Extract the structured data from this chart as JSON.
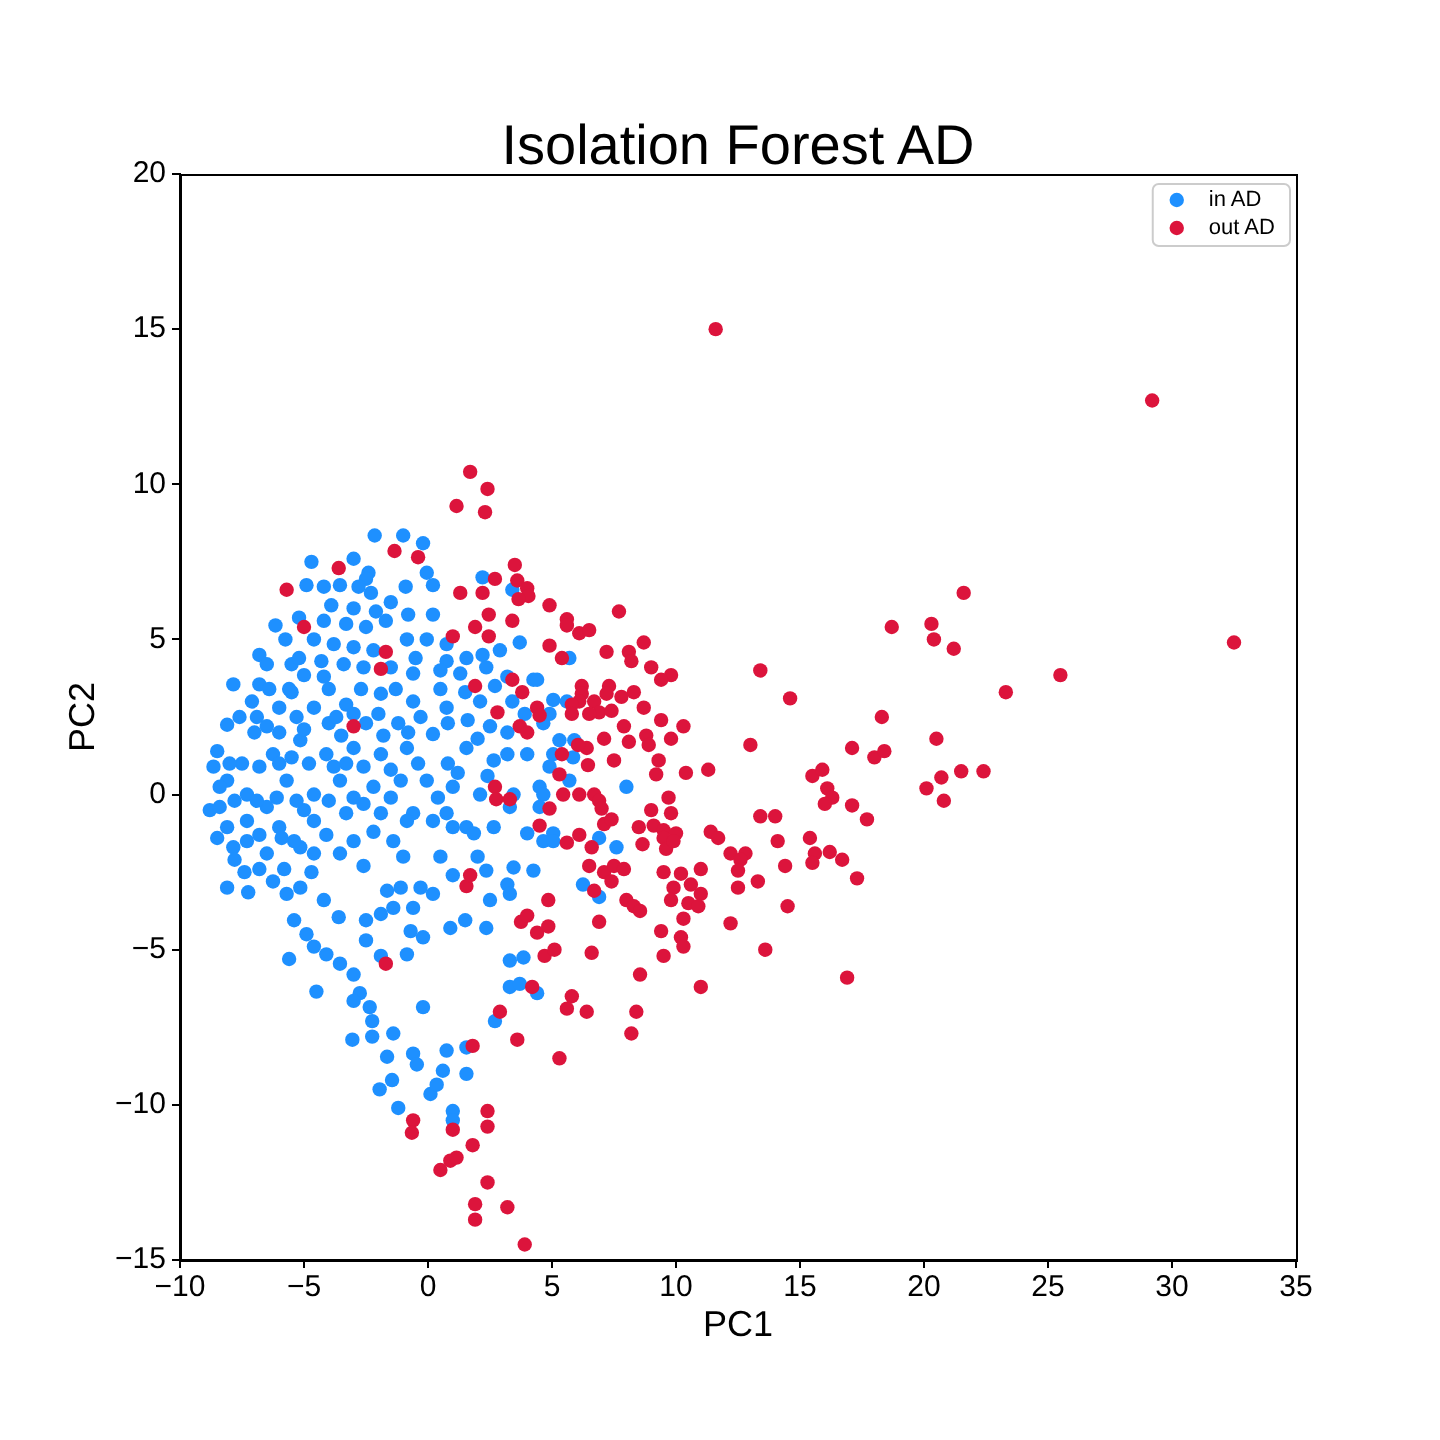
{
  "chart_data": {
    "type": "scatter",
    "title": "Isolation Forest AD",
    "xlabel": "PC1",
    "ylabel": "PC2",
    "xlim": [
      -10,
      35
    ],
    "xticks": [
      {
        "value": -10,
        "label": "−10"
      },
      {
        "value": -5,
        "label": "−5"
      },
      0,
      5,
      10,
      15,
      20,
      25,
      30,
      35
    ],
    "ylim": [
      -15,
      20
    ],
    "yticks": [
      {
        "value": -15,
        "label": "−15"
      },
      {
        "value": -10,
        "label": "−10"
      },
      {
        "value": -5,
        "label": "−5"
      },
      0,
      5,
      10,
      15,
      20
    ],
    "legend": "top right",
    "marker": "circle",
    "series": [
      {
        "name": "in AD",
        "color": "#1e90ff",
        "x": [
          -2.15,
          -1.0,
          -0.2,
          -4.7,
          -3.0,
          -2.4,
          -2.5,
          -0.05,
          0.2,
          -4.9,
          -4.2,
          -3.55,
          -2.8,
          -2.3,
          -0.9,
          -1.5,
          -0.8,
          0.2,
          2.2,
          3.4,
          3.7,
          2.2,
          -6.15,
          -5.75,
          -3.3,
          -2.5,
          -1.7,
          -4.6,
          -3.8,
          -3.0,
          -2.2,
          -0.85,
          -0.05,
          0.75,
          0.75,
          1.55,
          2.9,
          -5.0,
          -4.2,
          -7.85,
          -6.8,
          -7.1,
          -8.5,
          -8.8,
          -6.0,
          -4.6,
          -3.3,
          -1.9,
          -0.6,
          0.5,
          1.3,
          2.35,
          3.2,
          4.25,
          5.05,
          -0.6,
          0.75,
          2.1,
          3.4,
          4.65,
          5.6,
          -8.1,
          -8.65,
          -7.3,
          -6.5,
          -6.25,
          -5.15,
          -4.1,
          -3.0,
          -1.9,
          -0.85,
          0.2,
          1.55,
          2.65,
          4.0,
          5.05,
          5.9,
          -5.7,
          -4.6,
          -3.55,
          -2.2,
          -1.1,
          -0.05,
          1.0,
          2.1,
          3.45,
          4.5,
          5.7,
          -8.4,
          -7.3,
          -6.0,
          -4.6,
          -3.3,
          -1.9,
          -0.6,
          0.75,
          1.55,
          2.65,
          4.0,
          5.05,
          -7.85,
          -6.5,
          -5.15,
          -3.55,
          -8.1,
          -7.3,
          -5.4,
          -4.6,
          -3.0,
          -2.6,
          -7.8,
          -8.1,
          -7.25,
          -6.25,
          -5.7,
          -5.15,
          -4.2,
          -5.4,
          -4.9,
          -5.6,
          -3.6,
          -4.6,
          -4.1,
          -3.55,
          -3.0,
          -2.75,
          -4.5,
          -3.0,
          -2.35,
          -2.25,
          -3.05,
          -2.25,
          -1.4,
          -1.65,
          -0.6,
          -0.45,
          -1.95,
          -1.45,
          -1.2,
          0.1,
          0.35,
          0.6,
          0.75,
          1.55,
          1.55,
          1.0,
          1.0,
          -0.2,
          -2.5,
          -1.9,
          -0.85,
          -0.7,
          -0.2,
          -2.5,
          -1.9,
          -1.4,
          -0.6,
          0.2,
          0.9,
          1.5,
          2.35,
          -1.65,
          -1.1,
          -0.3,
          1.0,
          2.35,
          3.2,
          2.5,
          3.3,
          3.3,
          3.85,
          3.3,
          3.7,
          4.4,
          2.7,
          3.45,
          4.25,
          4.65,
          5.05,
          -1.4,
          -0.85,
          0.2,
          1.0,
          1.85,
          8.0,
          5.7,
          4.4,
          4.9,
          5.3,
          5.85,
          4.9,
          4.65,
          3.3,
          4.5,
          6.9,
          7.6,
          6.25,
          6.9,
          -8.4,
          -6.5,
          -8.1,
          -7.5,
          -7.0,
          -5.5,
          -4.0,
          -2.5,
          -1.2,
          -5.0,
          -2.6,
          -6.8,
          -5.5,
          -1.0,
          0.5,
          2.0,
          -6.4,
          -5.6,
          -4.0,
          -2.7,
          -1.3,
          -7.6,
          -6.9,
          -5.3,
          -3.7,
          -3.0,
          -2.0,
          -0.3,
          -6.0,
          -5.0,
          -3.5,
          -1.8,
          -0.8,
          0.8,
          1.6,
          2.5,
          -8.0,
          -6.8,
          -6.0,
          -5.5,
          -4.8,
          -3.8,
          -3.3,
          -2.6,
          -1.5,
          -0.4,
          0.8,
          -7.8,
          -6.9,
          -6.1,
          -5.3,
          -4.0,
          -3.0,
          -1.5,
          0.4,
          -8.5,
          -6.8,
          -5.9,
          -4.1,
          -2.2,
          -7.4,
          -6.8,
          -5.8,
          -4.7,
          -6.5,
          -5.2,
          -4.3,
          -3.4,
          -2.6,
          -1.5,
          -0.5,
          -3.9,
          -3.0,
          -2.1,
          0.5,
          1.5,
          2.7,
          3.9,
          2.0,
          3.2,
          3.2,
          1.2,
          2.4,
          -5.2,
          -4.2
        ],
        "values": [
          8.35,
          8.35,
          8.1,
          7.5,
          7.6,
          7.15,
          6.95,
          7.15,
          6.75,
          6.75,
          6.7,
          6.75,
          6.7,
          6.5,
          6.7,
          6.2,
          5.8,
          5.8,
          7.0,
          6.6,
          4.9,
          4.5,
          5.45,
          5.0,
          5.5,
          5.4,
          5.6,
          5.0,
          4.85,
          4.75,
          4.65,
          5.0,
          5.0,
          4.85,
          4.3,
          4.4,
          4.65,
          3.85,
          3.8,
          3.55,
          3.55,
          3.0,
          1.4,
          -0.5,
          2.8,
          2.8,
          2.9,
          3.25,
          3.9,
          4.0,
          3.9,
          4.1,
          3.8,
          3.7,
          3.05,
          3.0,
          2.8,
          3.0,
          3.0,
          2.3,
          3.0,
          0.45,
          0.9,
          0.0,
          -0.4,
          1.3,
          1.75,
          1.3,
          1.5,
          1.3,
          1.5,
          1.95,
          1.5,
          1.1,
          1.3,
          1.3,
          1.75,
          0.45,
          0.0,
          0.45,
          0.25,
          0.45,
          0.45,
          0.25,
          0.0,
          0.0,
          0.25,
          0.45,
          -0.4,
          -0.85,
          -1.05,
          -0.85,
          -0.6,
          -0.6,
          -0.6,
          -0.6,
          -1.05,
          -1.05,
          -1.25,
          -1.25,
          -1.7,
          -1.9,
          -1.7,
          -1.9,
          -1.05,
          -1.5,
          -1.5,
          -1.9,
          -1.5,
          -2.3,
          -2.1,
          -3.0,
          -3.15,
          -2.8,
          -3.2,
          -3.0,
          -3.4,
          -4.05,
          -4.5,
          -5.3,
          -3.95,
          -4.9,
          -5.15,
          -5.45,
          -5.8,
          -6.4,
          -6.35,
          -6.65,
          -6.85,
          -7.3,
          -7.9,
          -7.8,
          -7.7,
          -8.45,
          -8.35,
          -8.7,
          -9.5,
          -9.2,
          -10.1,
          -9.65,
          -9.35,
          -8.9,
          -8.25,
          -9.0,
          -8.15,
          -10.2,
          -10.5,
          -6.85,
          -4.7,
          -5.2,
          -5.15,
          -4.4,
          -4.6,
          -4.05,
          -3.85,
          -3.65,
          -3.65,
          -3.2,
          -4.3,
          -4.05,
          -4.3,
          -3.1,
          -3.0,
          -3.0,
          -2.6,
          -2.45,
          -2.9,
          -3.4,
          -3.2,
          -5.35,
          -5.25,
          -6.2,
          -6.1,
          -6.4,
          -7.3,
          -2.35,
          -2.45,
          -1.5,
          -1.5,
          -1.5,
          -0.85,
          -0.85,
          -1.05,
          -1.25,
          0.25,
          4.4,
          3.7,
          2.6,
          1.75,
          1.2,
          0.9,
          0.0,
          -0.4,
          -0.4,
          -1.4,
          -1.7,
          -2.9,
          -3.3,
          0.25,
          2.2,
          2.25,
          1.0,
          2.0,
          3.3,
          2.3,
          2.3,
          2.3,
          -0.5,
          -0.3,
          4.5,
          4.2,
          -2.0,
          -2.0,
          -2.0,
          3.4,
          3.4,
          3.4,
          3.4,
          3.4,
          2.5,
          2.5,
          2.5,
          2.5,
          2.6,
          2.6,
          2.5,
          2.0,
          2.1,
          1.9,
          1.9,
          2.0,
          2.3,
          2.4,
          2.2,
          1.0,
          0.9,
          1.0,
          1.2,
          1.0,
          0.9,
          1.0,
          0.9,
          0.8,
          1.0,
          1.0,
          -0.2,
          -0.2,
          -0.1,
          -0.2,
          -0.2,
          -0.1,
          -0.1,
          -0.1,
          -1.4,
          -1.3,
          -1.4,
          -1.3,
          -1.2,
          -2.5,
          -2.4,
          -2.4,
          -2.5,
          4.2,
          4.4,
          4.3,
          4.2,
          4.1,
          4.1,
          4.4,
          6.1,
          6.0,
          5.9,
          3.4,
          3.3,
          3.5,
          2.6,
          1.8,
          2.0,
          1.3,
          0.7,
          0.6,
          5.7,
          5.6
        ]
      },
      {
        "name": "out AD",
        "color": "#dc143c",
        "x": [
          11.6,
          29.2,
          32.5,
          25.5,
          23.3,
          21.6,
          18.7,
          20.3,
          20.4,
          21.2,
          13.4,
          14.6,
          18.3,
          9.8,
          10.3,
          9.4,
          9.8,
          13.0,
          17.1,
          20.5,
          18.0,
          18.4,
          10.4,
          11.3,
          15.5,
          15.9,
          20.1,
          20.7,
          21.5,
          22.4,
          20.8,
          16.1,
          16.3,
          16.0,
          17.1,
          17.7,
          13.4,
          14.0,
          9.7,
          9.8,
          11.4,
          11.7,
          14.1,
          15.4,
          12.2,
          12.8,
          12.6,
          15.6,
          16.2,
          16.7,
          15.5,
          14.4,
          12.5,
          11.0,
          17.3,
          13.3,
          12.5,
          10.2,
          10.6,
          11.0,
          9.9,
          10.5,
          10.9,
          14.5,
          12.2,
          10.3,
          10.2,
          10.3,
          13.6,
          9.5,
          9.4,
          16.9,
          11.0,
          1.7,
          2.4,
          1.15,
          2.3,
          3.5,
          -0.4,
          2.7,
          3.6,
          4.0,
          4.05,
          3.65,
          1.3,
          2.2,
          4.9,
          2.45,
          1.0,
          2.45,
          1.9,
          3.4,
          5.6,
          5.6,
          6.1,
          6.5,
          7.7,
          4.9,
          5.4,
          7.2,
          8.1,
          8.2,
          8.7,
          9.0,
          9.4,
          3.4,
          1.9,
          6.2,
          6.2,
          6.1,
          7.3,
          7.2,
          8.3,
          7.8,
          8.7,
          3.8,
          2.8,
          4.4,
          4.5,
          5.8,
          6.7,
          6.9,
          7.4,
          6.5,
          5.8,
          3.7,
          4.0,
          7.9,
          8.1,
          7.1,
          8.8,
          8.9,
          5.4,
          5.3,
          5.45,
          6.45,
          6.4,
          7.5,
          6.1,
          6.7,
          6.9,
          9.3,
          9.2,
          2.7,
          2.75,
          4.9,
          4.5,
          9.0,
          7.1,
          7.4,
          8.5,
          9.1,
          9.5,
          10.0,
          6.05,
          3.3,
          5.6,
          6.1,
          6.6,
          7.0,
          6.5,
          6.7,
          7.1,
          7.5,
          7.9,
          7.4,
          8.65,
          9.5,
          9.6,
          9.9,
          9.5,
          9.8,
          8.0,
          8.3,
          8.55,
          6.9,
          4.85,
          3.75,
          4.0,
          4.4,
          4.85,
          4.7,
          5.1,
          6.6,
          1.55,
          1.7,
          4.2,
          5.8,
          5.6,
          6.4,
          8.4,
          8.2,
          8.55,
          2.9,
          3.6,
          5.3,
          1.8,
          2.4,
          2.4,
          -0.6,
          -0.65,
          1.0,
          1.8,
          0.5,
          0.9,
          1.15,
          2.4,
          1.9,
          3.2,
          1.9,
          3.9,
          -1.35,
          -3.6,
          -5.7,
          -5.0,
          -1.7,
          -1.9,
          -3.0,
          -1.7
        ],
        "values": [
          15.0,
          12.7,
          4.9,
          3.85,
          3.3,
          6.5,
          5.4,
          5.5,
          5.0,
          4.7,
          4.0,
          3.1,
          2.5,
          3.85,
          2.2,
          2.4,
          1.8,
          1.6,
          1.5,
          1.8,
          1.2,
          1.4,
          0.7,
          0.8,
          0.6,
          0.8,
          0.2,
          0.55,
          0.75,
          0.75,
          -0.2,
          0.2,
          -0.1,
          -0.3,
          -0.35,
          -0.8,
          -0.7,
          -0.7,
          -0.1,
          -0.6,
          -1.2,
          -1.4,
          -1.5,
          -1.4,
          -1.9,
          -1.9,
          -2.1,
          -1.9,
          -1.85,
          -2.1,
          -2.2,
          -2.3,
          -2.45,
          -2.4,
          -2.7,
          -2.8,
          -3.0,
          -2.55,
          -2.9,
          -3.2,
          -3.0,
          -3.5,
          -3.6,
          -3.6,
          -4.15,
          -4.0,
          -4.6,
          -4.9,
          -5.0,
          -5.2,
          -4.4,
          -5.9,
          -6.2,
          10.4,
          9.85,
          9.3,
          9.1,
          7.4,
          7.65,
          6.95,
          6.9,
          6.65,
          6.4,
          6.3,
          6.5,
          6.5,
          6.1,
          5.8,
          5.1,
          5.1,
          5.4,
          5.6,
          5.65,
          5.45,
          5.2,
          5.3,
          5.9,
          4.8,
          4.4,
          4.6,
          4.6,
          4.3,
          4.9,
          4.1,
          3.7,
          3.7,
          3.5,
          3.5,
          3.25,
          3.0,
          3.5,
          3.25,
          3.3,
          3.15,
          2.8,
          3.3,
          2.65,
          2.8,
          2.55,
          2.9,
          3.0,
          2.65,
          2.7,
          2.6,
          2.6,
          2.2,
          2.0,
          2.2,
          1.7,
          1.8,
          1.9,
          1.6,
          1.3,
          0.65,
          0.0,
          0.95,
          1.5,
          1.1,
          0.0,
          0.0,
          -0.2,
          1.1,
          0.65,
          0.25,
          -0.15,
          -0.45,
          -1.0,
          -0.5,
          -0.95,
          -0.8,
          -1.05,
          -1.0,
          -1.15,
          -1.25,
          1.6,
          -0.15,
          -1.55,
          -1.3,
          -1.7,
          -0.45,
          -2.3,
          -3.1,
          -2.5,
          -2.3,
          -2.4,
          -2.8,
          -1.6,
          -1.4,
          -1.75,
          -1.5,
          -2.5,
          -3.4,
          -3.4,
          -3.6,
          -3.75,
          -4.1,
          -3.4,
          -4.1,
          -3.9,
          -4.45,
          -4.25,
          -5.2,
          -5.0,
          -5.1,
          -2.95,
          -2.6,
          -6.2,
          -6.5,
          -6.9,
          -7.0,
          -7.0,
          -7.7,
          -5.8,
          -7.0,
          -7.9,
          -8.5,
          -8.1,
          -10.2,
          -10.7,
          -10.5,
          -10.9,
          -10.8,
          -11.3,
          -12.1,
          -11.8,
          -11.7,
          -12.5,
          -13.2,
          -13.3,
          -13.7,
          -14.5,
          7.85,
          7.3,
          6.6,
          5.4,
          4.6,
          4.05,
          2.2,
          -5.45
        ]
      }
    ]
  }
}
